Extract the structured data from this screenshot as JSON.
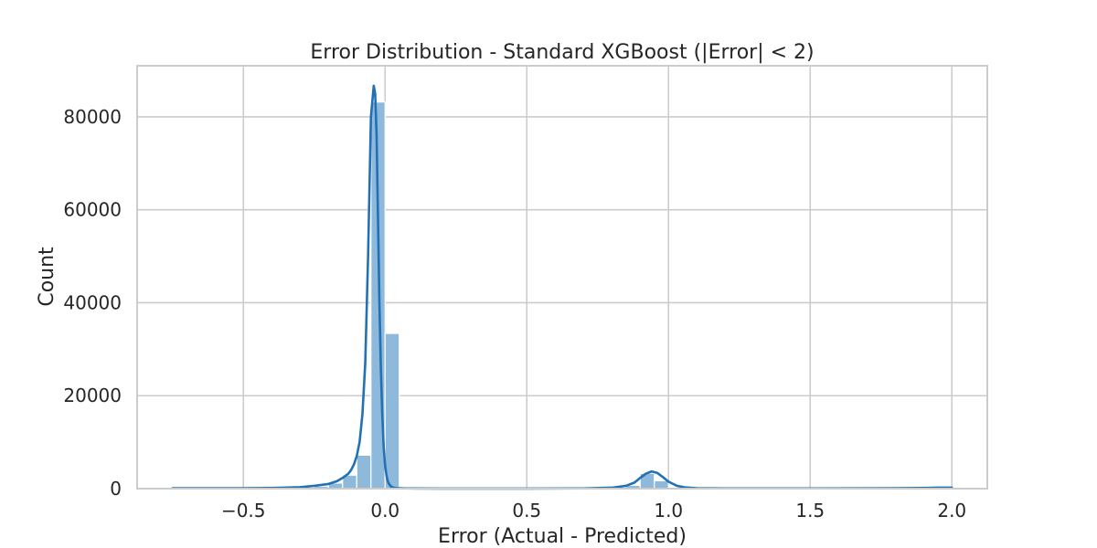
{
  "chart_data": {
    "type": "bar",
    "title": "Error Distribution - Standard XGBoost (|Error| < 2)",
    "xlabel": "Error (Actual - Predicted)",
    "ylabel": "Count",
    "xlim": [
      -0.875,
      2.125
    ],
    "ylim": [
      0,
      91000
    ],
    "xticks": [
      -0.5,
      0.0,
      0.5,
      1.0,
      1.5,
      2.0
    ],
    "xtick_labels": [
      "−0.5",
      "0.0",
      "0.5",
      "1.0",
      "1.5",
      "2.0"
    ],
    "yticks": [
      0,
      20000,
      40000,
      60000,
      80000
    ],
    "ytick_labels": [
      "0",
      "20000",
      "40000",
      "60000",
      "80000"
    ],
    "grid": true,
    "legend": false,
    "colors": {
      "bar_fill": "#8fb9da",
      "bar_edge": "#ffffff",
      "kde_line": "#2171b5",
      "grid": "#cccccc",
      "axes_edge": "#cccccc",
      "text": "#262626"
    },
    "bin_width": 0.05,
    "bins": [
      {
        "x0": -0.75,
        "x1": -0.7,
        "value": 150
      },
      {
        "x0": -0.7,
        "x1": -0.65,
        "value": 100
      },
      {
        "x0": -0.65,
        "x1": -0.6,
        "value": 100
      },
      {
        "x0": -0.6,
        "x1": -0.55,
        "value": 100
      },
      {
        "x0": -0.55,
        "x1": -0.5,
        "value": 100
      },
      {
        "x0": -0.5,
        "x1": -0.45,
        "value": 100
      },
      {
        "x0": -0.45,
        "x1": -0.4,
        "value": 100
      },
      {
        "x0": -0.4,
        "x1": -0.35,
        "value": 100
      },
      {
        "x0": -0.35,
        "x1": -0.3,
        "value": 100
      },
      {
        "x0": -0.3,
        "x1": -0.25,
        "value": 150
      },
      {
        "x0": -0.25,
        "x1": -0.2,
        "value": 500
      },
      {
        "x0": -0.2,
        "x1": -0.15,
        "value": 1200
      },
      {
        "x0": -0.15,
        "x1": -0.1,
        "value": 2900
      },
      {
        "x0": -0.1,
        "x1": -0.05,
        "value": 7200
      },
      {
        "x0": -0.05,
        "x1": 0.0,
        "value": 83200
      },
      {
        "x0": 0.0,
        "x1": 0.05,
        "value": 33400
      },
      {
        "x0": 0.05,
        "x1": 0.1,
        "value": 200
      },
      {
        "x0": 0.1,
        "x1": 0.15,
        "value": 100
      },
      {
        "x0": 0.8,
        "x1": 0.85,
        "value": 150
      },
      {
        "x0": 0.85,
        "x1": 0.9,
        "value": 700
      },
      {
        "x0": 0.9,
        "x1": 0.95,
        "value": 3300
      },
      {
        "x0": 0.95,
        "x1": 1.0,
        "value": 1700
      },
      {
        "x0": 1.0,
        "x1": 1.05,
        "value": 200
      },
      {
        "x0": 1.9,
        "x1": 1.95,
        "value": 250
      },
      {
        "x0": 1.95,
        "x1": 2.0,
        "value": 350
      }
    ],
    "kde": {
      "x": [
        -0.75,
        -0.5,
        -0.4,
        -0.3,
        -0.25,
        -0.2,
        -0.17,
        -0.15,
        -0.13,
        -0.12,
        -0.11,
        -0.1,
        -0.09,
        -0.08,
        -0.07,
        -0.06,
        -0.05,
        -0.04,
        -0.035,
        -0.03,
        -0.025,
        -0.02,
        -0.015,
        -0.01,
        -0.005,
        0.0,
        0.005,
        0.01,
        0.015,
        0.02,
        0.03,
        0.04,
        0.05,
        0.07,
        0.1,
        0.2,
        0.5,
        0.7,
        0.8,
        0.85,
        0.88,
        0.9,
        0.92,
        0.94,
        0.96,
        0.98,
        1.0,
        1.03,
        1.06,
        1.1,
        1.2,
        1.5,
        1.8,
        1.9,
        1.95,
        1.98,
        2.0
      ],
      "y": [
        80,
        100,
        150,
        300,
        600,
        1000,
        1600,
        2300,
        3200,
        4000,
        5200,
        7000,
        10000,
        16000,
        27000,
        50000,
        80000,
        86700,
        85000,
        76000,
        58000,
        40000,
        26000,
        16000,
        9000,
        5000,
        2800,
        1500,
        900,
        500,
        200,
        100,
        80,
        50,
        30,
        20,
        20,
        50,
        200,
        600,
        1300,
        2300,
        3200,
        3700,
        3400,
        2500,
        1500,
        600,
        250,
        100,
        50,
        50,
        80,
        150,
        200,
        220,
        200
      ]
    }
  }
}
